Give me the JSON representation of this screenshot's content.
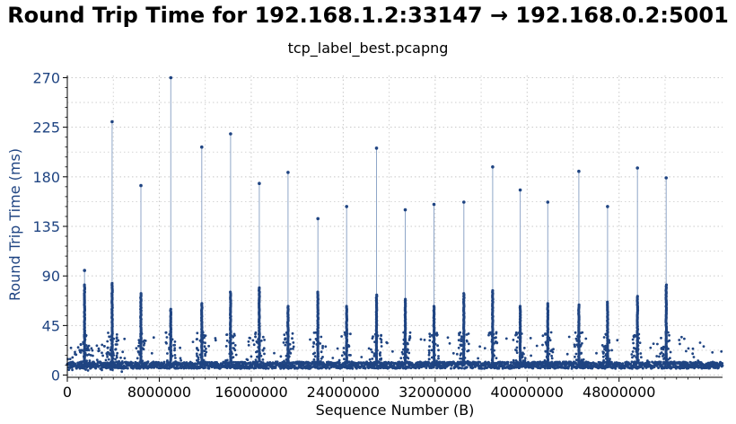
{
  "chart_data": {
    "type": "scatter",
    "title": "Round Trip Time for 192.168.1.2:33147 → 192.168.0.2:5001",
    "subtitle": "tcp_label_best.pcapng",
    "xlabel": "Sequence Number (B)",
    "ylabel": "Round Trip Time (ms)",
    "xlim": [
      0,
      57000000
    ],
    "ylim": [
      -2,
      272
    ],
    "xticks": [
      0,
      8000000,
      16000000,
      24000000,
      32000000,
      40000000,
      48000000
    ],
    "xtick_labels": [
      "0",
      "8000000",
      "16000000",
      "24000000",
      "32000000",
      "40000000",
      "48000000"
    ],
    "yticks": [
      0,
      45,
      90,
      135,
      180,
      225,
      270
    ],
    "ytick_labels": [
      "0",
      "45",
      "90",
      "135",
      "180",
      "225",
      "270"
    ],
    "grid": true,
    "colors": {
      "series": "#1f4482",
      "axis_label": "#1f4482",
      "grid": "#c8c8c8"
    },
    "baseline_ms": 9,
    "bursts": [
      {
        "x": 1500000,
        "peak": 95
      },
      {
        "x": 3900000,
        "peak": 230
      },
      {
        "x": 6400000,
        "peak": 172
      },
      {
        "x": 9000000,
        "peak": 270
      },
      {
        "x": 11700000,
        "peak": 207
      },
      {
        "x": 14200000,
        "peak": 219
      },
      {
        "x": 16700000,
        "peak": 174
      },
      {
        "x": 19200000,
        "peak": 184
      },
      {
        "x": 21800000,
        "peak": 142
      },
      {
        "x": 24300000,
        "peak": 153
      },
      {
        "x": 26900000,
        "peak": 206
      },
      {
        "x": 29400000,
        "peak": 150
      },
      {
        "x": 31900000,
        "peak": 155
      },
      {
        "x": 34500000,
        "peak": 157
      },
      {
        "x": 37000000,
        "peak": 189
      },
      {
        "x": 39400000,
        "peak": 168
      },
      {
        "x": 41800000,
        "peak": 157
      },
      {
        "x": 44500000,
        "peak": 185
      },
      {
        "x": 47000000,
        "peak": 153
      },
      {
        "x": 49600000,
        "peak": 188
      },
      {
        "x": 52100000,
        "peak": 179
      }
    ]
  }
}
